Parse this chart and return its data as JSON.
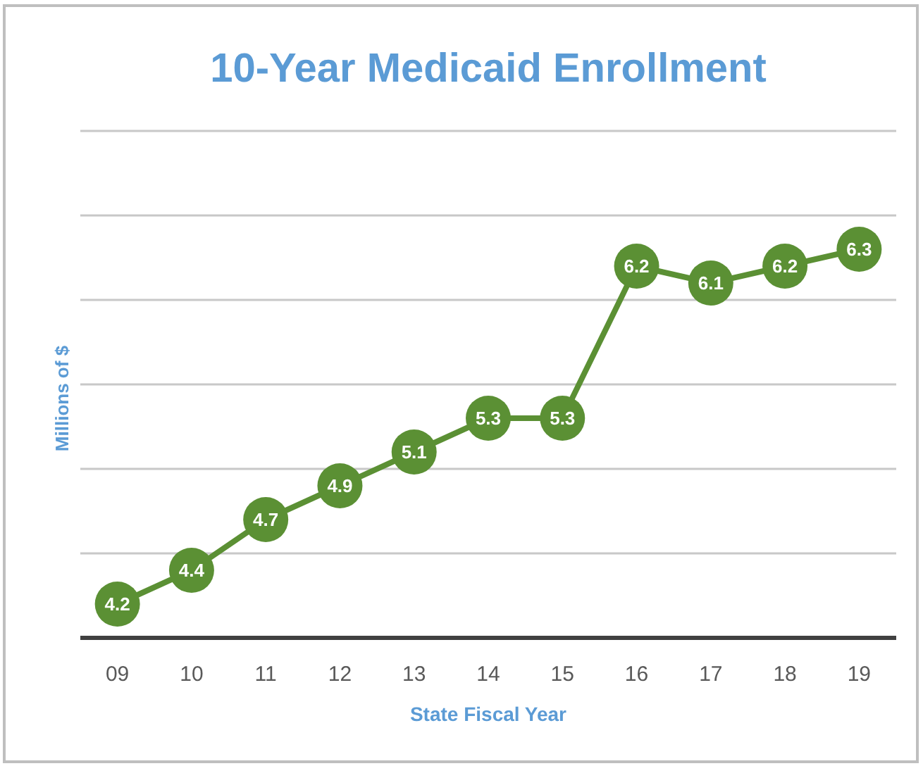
{
  "chart_data": {
    "type": "line",
    "title": "10-Year Medicaid Enrollment",
    "xlabel": "State Fiscal Year",
    "ylabel": "Millions of $",
    "categories": [
      "09",
      "10",
      "11",
      "12",
      "13",
      "14",
      "15",
      "16",
      "17",
      "18",
      "19"
    ],
    "values": [
      4.2,
      4.4,
      4.7,
      4.9,
      5.1,
      5.3,
      5.3,
      6.2,
      6.1,
      6.2,
      6.3
    ],
    "color": "#5b9034",
    "ylim": [
      4,
      7
    ],
    "yticks": [
      {
        "value": 4,
        "label": null
      },
      {
        "value": 4.5,
        "label": null
      },
      {
        "value": 5,
        "label": null
      },
      {
        "value": 5.5,
        "label": null
      },
      {
        "value": 6,
        "label": null
      },
      {
        "value": 6.5,
        "label": null
      },
      {
        "value": 7,
        "label": null
      }
    ],
    "tick_labels": "x",
    "grid": "y",
    "marker": "circle",
    "line_style": "solid",
    "data_labels": true
  }
}
